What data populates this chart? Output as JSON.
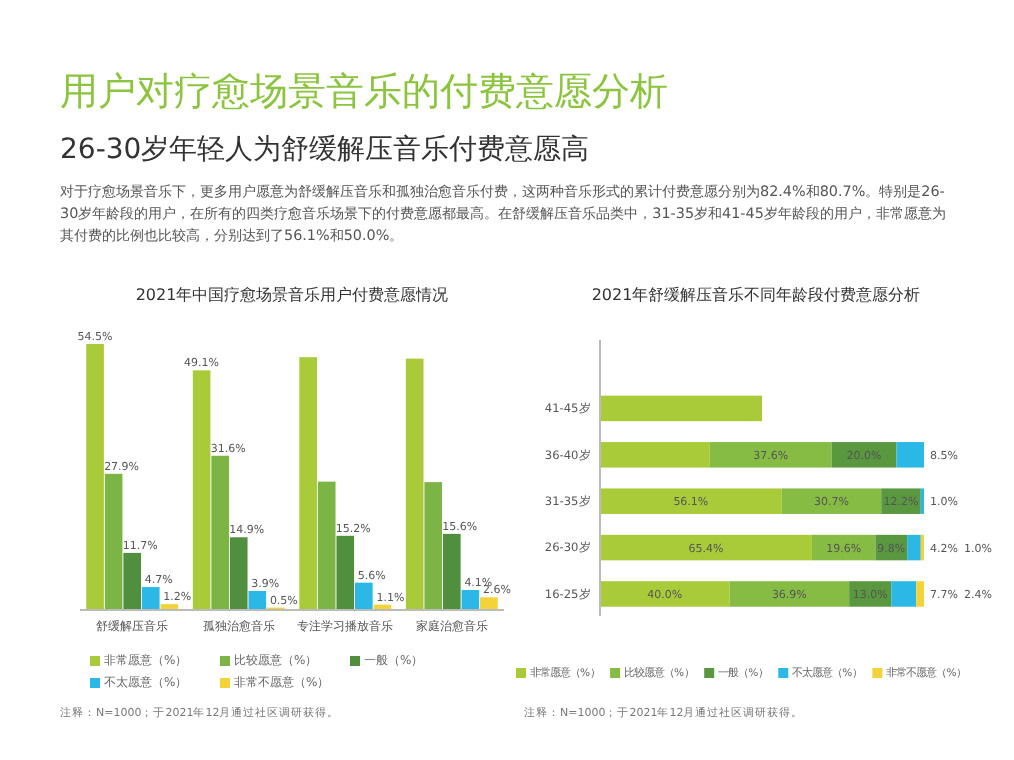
{
  "chart_data": [
    {
      "type": "bar",
      "title": "2021年中国疗愈场景音乐用户付费意愿情况",
      "categories": [
        "舒缓解压音乐",
        "孤独治愈音乐",
        "专注学习播放音乐",
        "家庭治愈音乐"
      ],
      "series": [
        {
          "name": "非常愿意（%）",
          "color": "#a9cb3a",
          "values": [
            54.5,
            49.1,
            51.8,
            51.5
          ],
          "value_labels": [
            "54.5%",
            "49.1%",
            null,
            null
          ]
        },
        {
          "name": "比较愿意（%）",
          "color": "#7db446",
          "values": [
            27.9,
            31.6,
            26.3,
            26.2
          ],
          "value_labels": [
            "27.9%",
            "31.6%",
            null,
            null
          ]
        },
        {
          "name": "一般（%）",
          "color": "#4f8f3e",
          "values": [
            11.7,
            14.9,
            15.2,
            15.6
          ],
          "value_labels": [
            "11.7%",
            "14.9%",
            "15.2%",
            "15.6%"
          ]
        },
        {
          "name": "不太愿意（%）",
          "color": "#2cb8e6",
          "values": [
            4.7,
            3.9,
            5.6,
            4.1
          ],
          "value_labels": [
            "4.7%",
            "3.9%",
            "5.6%",
            "4.1%"
          ]
        },
        {
          "name": "非常不愿意（%）",
          "color": "#f3d23a",
          "values": [
            1.2,
            0.5,
            1.1,
            2.6
          ],
          "value_labels": [
            "1.2%",
            "0.5%",
            "1.1%",
            "2.6%"
          ]
        }
      ],
      "legend": "bottom",
      "annotations": [
        "用户对疗愈场景音乐的付费意愿分析",
        "26-30岁年轻人为舒缓解压音乐付费意愿高",
        "对于疗愈场景音乐下，更多用户愿意为舒缓解压音乐和孤独治愈音乐付费，这两种音乐形式的累计付费意愿分别为82.4%和80.7%。特别是26-30岁年龄段的用户，在所有的四类疗愈音乐场景下的付费意愿都最高。在舒缓解压音乐品类中，31-35岁和41-45岁年龄段的用户，非常愿意为其付费的比例也比较高，分别达到了56.1%和50.0%。",
        "注释：N=1000；于2021年12月通过社区调研获得。"
      ]
    },
    {
      "type": "bar",
      "title": "2021年舒缓解压音乐不同年龄段付费意愿分析",
      "orientation": "horizontal",
      "stacked": true,
      "categories": [
        null,
        "41-45岁",
        "36-40岁",
        "31-35岁",
        "26-30岁",
        "16-25岁"
      ],
      "series": [
        {
          "name": "非常愿意（%）",
          "color": "#a9cb3a",
          "values": [
            null,
            50.0,
            33.9,
            56.1,
            65.4,
            40.0
          ],
          "value_labels": [
            null,
            null,
            null,
            "56.1%",
            "65.4%",
            "40.0%"
          ]
        },
        {
          "name": "比较愿意（%）",
          "color": "#86bb44",
          "values": [
            null,
            null,
            37.6,
            30.7,
            19.6,
            36.9
          ],
          "value_labels": [
            null,
            null,
            "37.6%",
            "30.7%",
            "19.6%",
            "36.9%"
          ]
        },
        {
          "name": "一般（%）",
          "color": "#5a983f",
          "values": [
            null,
            null,
            20.0,
            12.2,
            9.8,
            13.0
          ],
          "value_labels": [
            null,
            null,
            "20.0%",
            "12.2%",
            "9.8%",
            "13.0%"
          ]
        },
        {
          "name": "不太愿意（%）",
          "color": "#2cb8e6",
          "values": [
            null,
            null,
            8.5,
            1.0,
            4.2,
            7.7
          ],
          "value_labels": [
            null,
            null,
            "8.5%",
            "1.0%",
            "4.2%",
            "7.7%"
          ]
        },
        {
          "name": "非常不愿意（%）",
          "color": "#f3d23a",
          "values": [
            null,
            null,
            null,
            null,
            1.0,
            2.4
          ],
          "value_labels": [
            null,
            null,
            null,
            null,
            "1.0%",
            "2.4%"
          ]
        }
      ],
      "legend": "bottom",
      "annotations": [
        "注释：N=1000；于2021年12月通过社区调研获得。"
      ]
    }
  ]
}
